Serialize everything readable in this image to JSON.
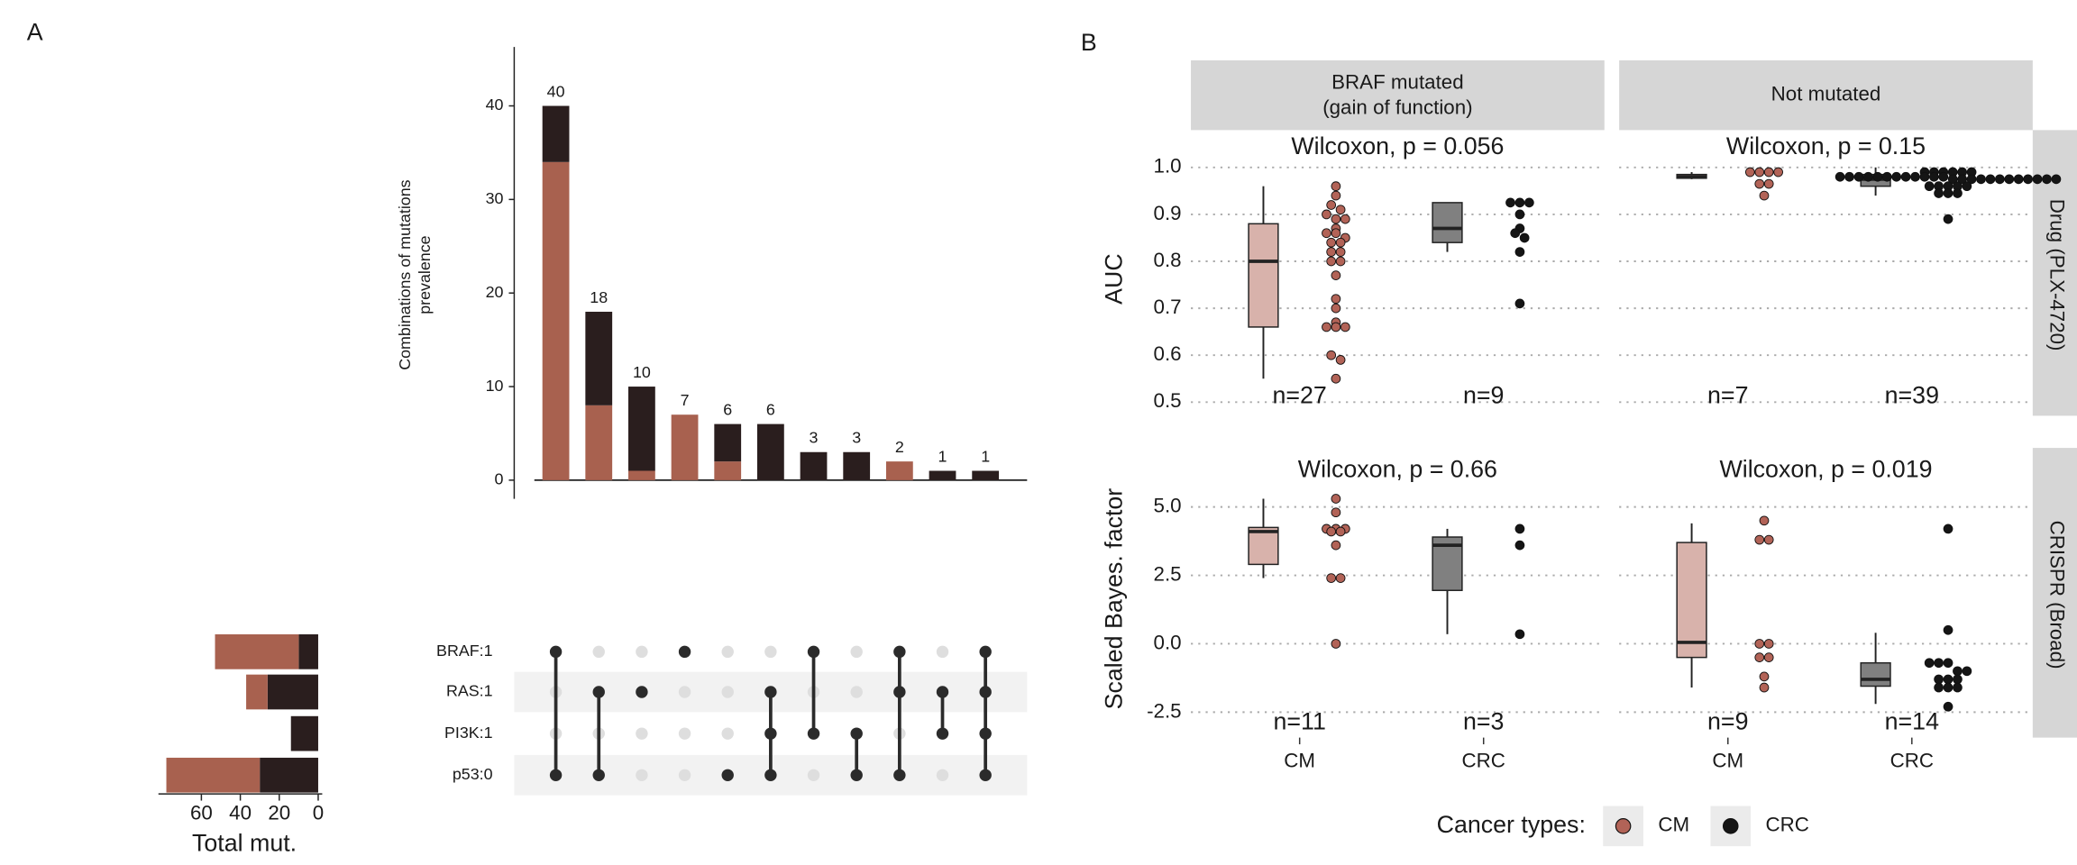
{
  "panel_labels": [
    "A",
    "B"
  ],
  "chart_data": [
    {
      "type": "stacked-bar",
      "ylabel": [
        "Combinations of mutations",
        "prevalence"
      ],
      "totals": [
        40,
        18,
        10,
        7,
        6,
        6,
        3,
        3,
        2,
        1,
        1
      ],
      "series": [
        {
          "name": "CM",
          "color": "#a8614f",
          "values": [
            34,
            8,
            1,
            7,
            2,
            0,
            0,
            0,
            2,
            0,
            0
          ]
        },
        {
          "name": "CRC",
          "color": "#2a1e1e",
          "values": [
            6,
            10,
            9,
            0,
            4,
            6,
            3,
            3,
            0,
            1,
            1
          ]
        }
      ],
      "ylim": [
        -2,
        46.3
      ],
      "yticks": [
        0,
        10,
        20,
        30,
        40
      ]
    },
    {
      "type": "matrix",
      "sets": [
        "BRAF:1",
        "RAS:1",
        "PI3K:1",
        "p53:0"
      ],
      "combinations": [
        [
          0,
          3
        ],
        [
          1,
          3
        ],
        [
          1
        ],
        [
          0
        ],
        [
          3
        ],
        [
          1,
          2,
          3
        ],
        [
          0,
          2
        ],
        [
          2,
          3
        ],
        [
          0,
          1,
          3
        ],
        [
          1,
          2
        ],
        [
          0,
          1,
          2,
          3
        ]
      ]
    },
    {
      "type": "hbar",
      "xlabel": "Total mut.",
      "reversed": true,
      "series": [
        {
          "name": "CM",
          "color": "#a8614f",
          "values": [
            43,
            11,
            0,
            48
          ]
        },
        {
          "name": "CRC",
          "color": "#2a1e1e",
          "values": [
            10,
            26,
            14,
            30
          ]
        }
      ],
      "xlim": [
        0,
        80
      ],
      "xticks": [
        0,
        20,
        40,
        60
      ]
    },
    {
      "type": "box",
      "col_strips": [
        [
          "BRAF mutated",
          "(gain of function)"
        ],
        [
          "Not mutated"
        ]
      ],
      "row_strips": [
        "Drug (PLX-4720)",
        "CRISPR (Broad)"
      ],
      "ylabels": [
        "AUC",
        "Scaled Bayes. factor"
      ],
      "categories": [
        "CM",
        "CRC"
      ],
      "series": [
        {
          "name": "CM",
          "color": "#b26357",
          "fill": "#d8b2ab"
        },
        {
          "name": "CRC",
          "color": "#151515",
          "fill": "#808080"
        }
      ],
      "legend_title": "Cancer types:",
      "rows": [
        {
          "ylim": [
            0.471,
            1.071
          ],
          "yticks": [
            {
              "value": 0.5,
              "label": "0.5"
            },
            {
              "value": 0.6,
              "label": "0.6"
            },
            {
              "value": 0.7,
              "label": "0.7"
            },
            {
              "value": 0.8,
              "label": "0.8"
            },
            {
              "value": 0.9,
              "label": "0.9"
            },
            {
              "value": 1,
              "label": "1.0"
            }
          ]
        },
        {
          "ylim": [
            -3.43,
            7.01
          ],
          "yticks": [
            -2.5,
            {
              "value": 0,
              "label": "0.0"
            },
            2.5,
            {
              "value": 5,
              "label": "5.0"
            }
          ]
        }
      ],
      "panels": [
        {
          "row": 0,
          "col": 0,
          "annotation": "Wilcoxon, p = 0.056",
          "n_labels": [
            "n=27",
            "n=9"
          ],
          "boxes": [
            {
              "min": 0.55,
              "q1": 0.66,
              "median": 0.8,
              "q3": 0.88,
              "max": 0.96
            },
            {
              "min": 0.82,
              "q1": 0.84,
              "median": 0.87,
              "q3": 0.925,
              "max": 0.925
            }
          ],
          "points": [
            [
              0.96,
              0.94,
              0.92,
              0.91,
              0.9,
              0.89,
              0.89,
              0.87,
              0.86,
              0.86,
              0.85,
              0.84,
              0.84,
              0.82,
              0.82,
              0.8,
              0.8,
              0.77,
              0.72,
              0.7,
              0.67,
              0.66,
              0.66,
              0.66,
              0.6,
              0.59,
              0.55
            ],
            [
              0.925,
              0.925,
              0.925,
              0.9,
              0.87,
              0.86,
              0.85,
              0.82,
              0.71
            ]
          ]
        },
        {
          "row": 0,
          "col": 1,
          "annotation": "Wilcoxon, p = 0.15",
          "n_labels": [
            "n=7",
            "n=39"
          ],
          "boxes": [
            {
              "min": 0.975,
              "q1": 0.977,
              "median": 0.98,
              "q3": 0.985,
              "max": 0.99
            },
            {
              "min": 0.94,
              "q1": 0.96,
              "median": 0.975,
              "q3": 0.985,
              "max": 1.0
            }
          ],
          "points": [
            [
              0.99,
              0.99,
              0.99,
              0.99,
              0.965,
              0.965,
              0.94
            ],
            [
              0.99,
              0.99,
              0.99,
              0.99,
              0.99,
              0.99,
              0.98,
              0.98,
              0.98,
              0.98,
              0.98,
              0.98,
              0.98,
              0.98,
              0.98,
              0.98,
              0.98,
              0.98,
              0.975,
              0.975,
              0.975,
              0.975,
              0.975,
              0.975,
              0.975,
              0.975,
              0.975,
              0.975,
              0.975,
              0.975,
              0.96,
              0.96,
              0.96,
              0.96,
              0.96,
              0.945,
              0.945,
              0.945,
              0.89
            ]
          ]
        },
        {
          "row": 1,
          "col": 0,
          "annotation": "Wilcoxon, p = 0.66",
          "n_labels": [
            "n=11",
            "n=3"
          ],
          "boxes": [
            {
              "min": 2.4,
              "q1": 2.9,
              "median": 4.1,
              "q3": 4.25,
              "max": 5.3
            },
            {
              "min": 0.35,
              "q1": 1.95,
              "median": 3.6,
              "q3": 3.9,
              "max": 4.2
            }
          ],
          "points": [
            [
              5.3,
              4.8,
              4.2,
              4.2,
              4.2,
              4.1,
              4.1,
              3.6,
              2.4,
              2.4,
              0
            ],
            [
              4.2,
              3.6,
              0.35
            ]
          ]
        },
        {
          "row": 1,
          "col": 1,
          "annotation": "Wilcoxon, p = 0.019",
          "n_labels": [
            "n=9",
            "n=14"
          ],
          "boxes": [
            {
              "min": -1.6,
              "q1": -0.5,
              "median": 0.05,
              "q3": 3.7,
              "max": 4.4
            },
            {
              "min": -2.2,
              "q1": -1.55,
              "median": -1.3,
              "q3": -0.7,
              "max": 0.4
            }
          ],
          "points": [
            [
              4.5,
              3.8,
              3.8,
              0,
              0,
              -0.5,
              -0.5,
              -1.2,
              -1.6
            ],
            [
              4.2,
              0.5,
              -0.7,
              -0.7,
              -0.7,
              -1.0,
              -1.0,
              -1.3,
              -1.3,
              -1.3,
              -1.6,
              -1.6,
              -1.6,
              -2.3
            ]
          ]
        }
      ]
    }
  ]
}
